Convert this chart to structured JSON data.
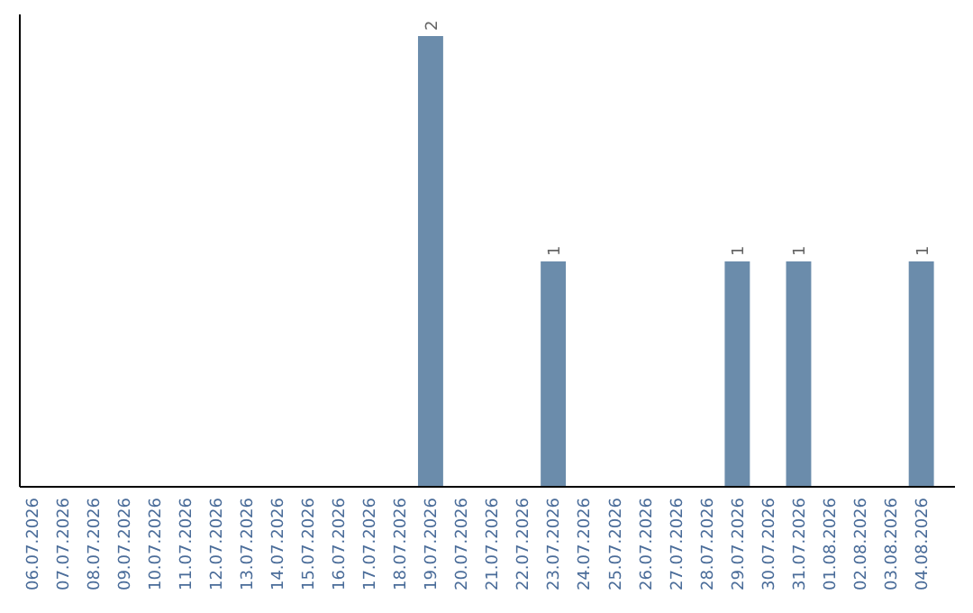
{
  "chart_data": {
    "type": "bar",
    "categories": [
      "06.07.2026",
      "07.07.2026",
      "08.07.2026",
      "09.07.2026",
      "10.07.2026",
      "11.07.2026",
      "12.07.2026",
      "13.07.2026",
      "14.07.2026",
      "15.07.2026",
      "16.07.2026",
      "17.07.2026",
      "18.07.2026",
      "19.07.2026",
      "20.07.2026",
      "21.07.2026",
      "22.07.2026",
      "23.07.2026",
      "24.07.2026",
      "25.07.2026",
      "26.07.2026",
      "27.07.2026",
      "28.07.2026",
      "29.07.2026",
      "30.07.2026",
      "31.07.2026",
      "01.08.2026",
      "02.08.2026",
      "03.08.2026",
      "04.08.2026"
    ],
    "values": [
      null,
      null,
      null,
      null,
      null,
      null,
      null,
      null,
      null,
      null,
      null,
      null,
      null,
      2,
      null,
      null,
      null,
      1,
      null,
      null,
      null,
      null,
      null,
      1,
      null,
      1,
      null,
      null,
      null,
      1
    ],
    "data_labels": true,
    "color": "#6b8cab",
    "grid": false,
    "tick_labels": "x"
  }
}
